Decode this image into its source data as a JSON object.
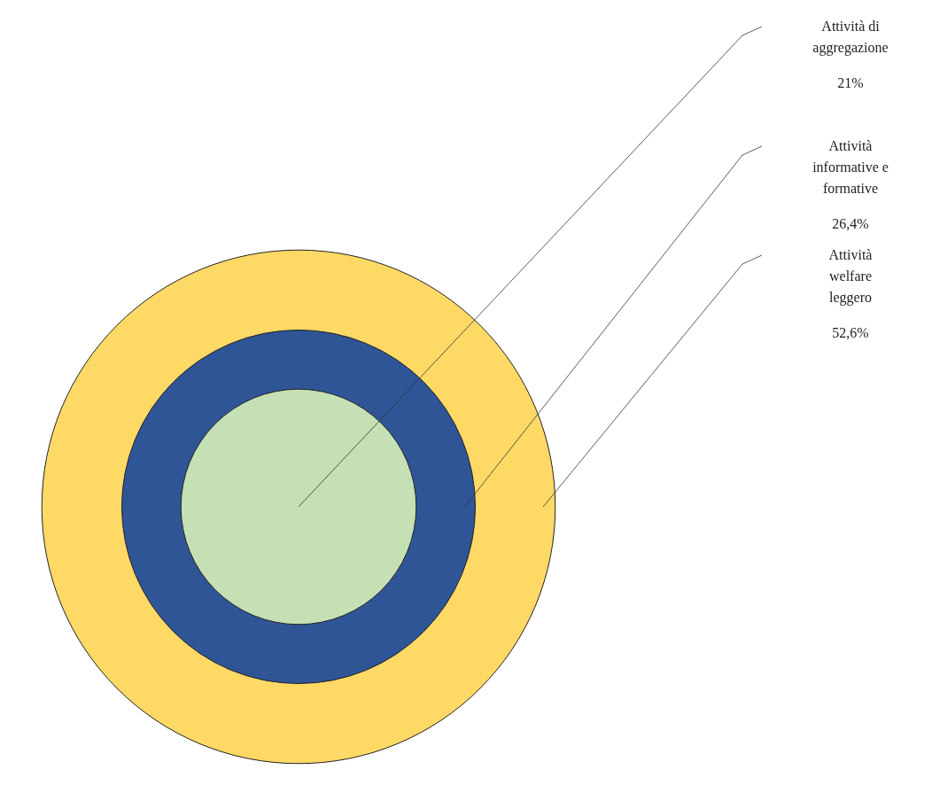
{
  "chart_data": {
    "type": "other",
    "categories": [
      "Attività di aggregazione",
      "Attività informative e formative",
      "Attività welfare leggero"
    ],
    "values": [
      21,
      26.4,
      52.6
    ],
    "value_labels": [
      "21%",
      "26,4%",
      "52,6%"
    ],
    "colors": [
      "#c5e0b4",
      "#2f5597",
      "#ffd966"
    ]
  }
}
